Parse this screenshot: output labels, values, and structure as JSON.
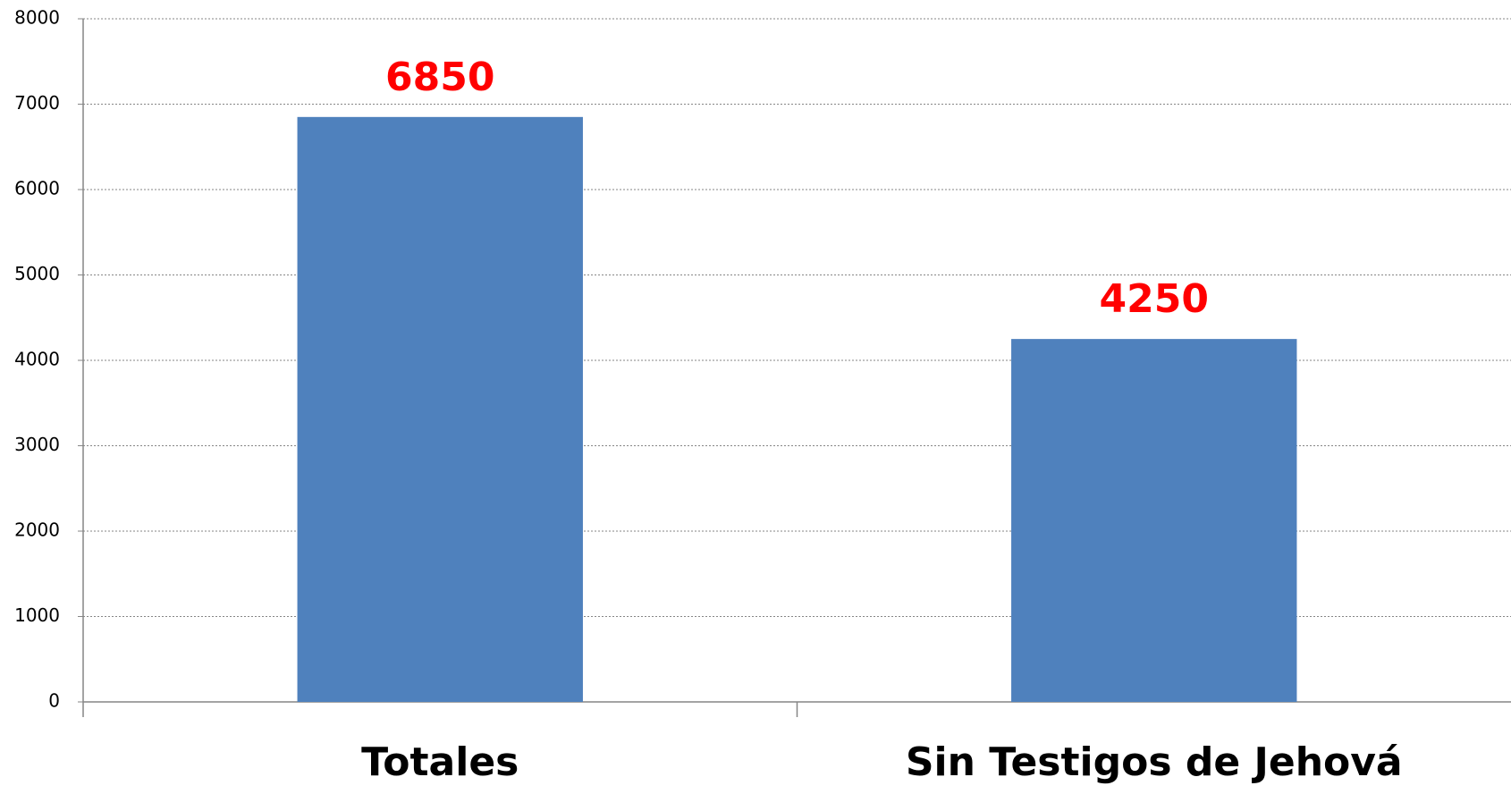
{
  "chart_data": {
    "type": "bar",
    "categories": [
      "Totales",
      "Sin Testigos de Jehová"
    ],
    "values": [
      6850,
      4250
    ],
    "color": "#4f81bd",
    "value_label_color": "#ff0000",
    "ylim": [
      0,
      8000
    ],
    "yticks": [
      0,
      1000,
      2000,
      3000,
      4000,
      5000,
      6000,
      7000,
      8000
    ],
    "grid": true
  }
}
